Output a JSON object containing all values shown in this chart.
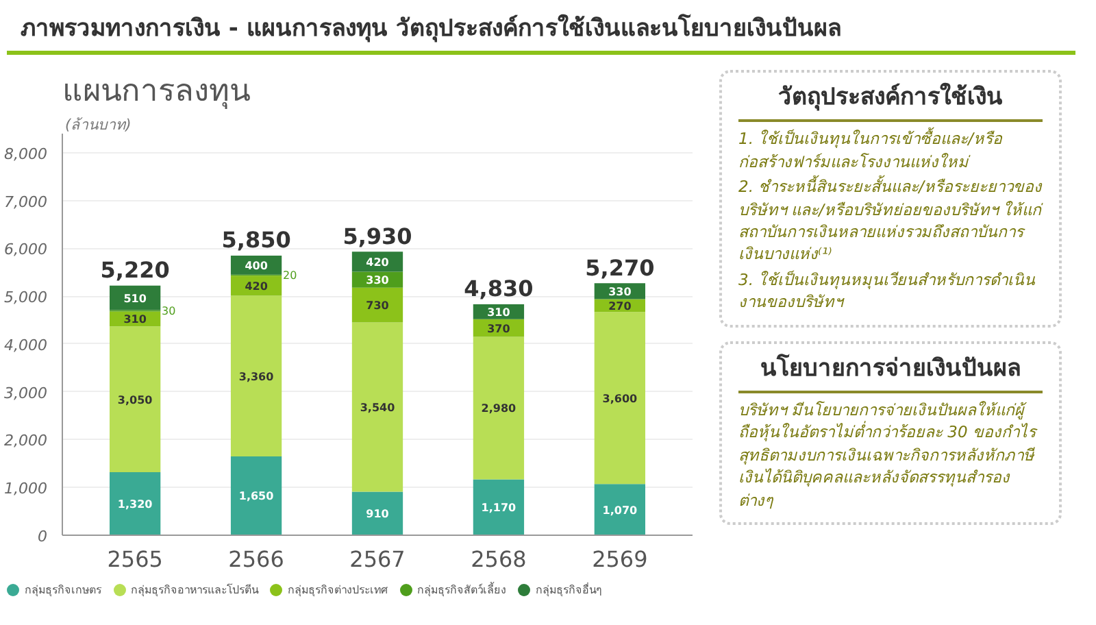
{
  "chart_data": [
    {
      "type": "bar",
      "title": "ภาพรวมทางการเงิน - แผนการลงทุน วัตถุประสงค์การใช้เงินและนโยบายเงินปันผล",
      "subtitle": "แผนการลงทุน",
      "ylabel": "(ล้านบาท)",
      "categories": [
        "2565",
        "2566",
        "2567",
        "2568",
        "2569"
      ],
      "stacked": true,
      "grid": "y",
      "legend": "bottom",
      "ylim": [
        0,
        8400
      ],
      "yticks": [
        {
          "value": 0,
          "label": "0"
        },
        {
          "value": 1000,
          "label": "1,000"
        },
        {
          "value": 2000,
          "label": "2,000"
        },
        {
          "value": 3000,
          "label": "3,000"
        },
        {
          "value": 4000,
          "label": "4,000"
        },
        {
          "value": 5000,
          "label": "5,000"
        },
        {
          "value": 6000,
          "label": "6,000"
        },
        {
          "value": 7000,
          "label": "7,000"
        },
        {
          "value": 8000,
          "label": "8,000"
        }
      ],
      "totals": [
        "5,220",
        "5,850",
        "5,930",
        "4,830",
        "5,270"
      ],
      "series": [
        {
          "name": "กลุ่มธุรกิจเกษตร",
          "color": "#3aaa94",
          "values": [
            1320,
            1650,
            910,
            1170,
            1070
          ],
          "value_labels": [
            "1,320",
            "1,650",
            "910",
            "1,170",
            "1,070"
          ]
        },
        {
          "name": "กลุ่มธุรกิจอาหารและโปรตีน",
          "color": "#b8de55",
          "values": [
            3050,
            3360,
            3540,
            2980,
            3600
          ],
          "value_labels": [
            "3,050",
            "3,360",
            "3,540",
            "2,980",
            "3,600"
          ]
        },
        {
          "name": "กลุ่มธุรกิจต่างประเทศ",
          "color": "#8cc21a",
          "values": [
            310,
            420,
            730,
            370,
            270
          ],
          "value_labels": [
            "310",
            "420",
            "730",
            "370",
            "270"
          ]
        },
        {
          "name": "กลุ่มธุรกิจสัตว์เลี้ยง",
          "color": "#4f9e1c",
          "values": [
            30,
            20,
            330,
            null,
            null
          ],
          "value_labels": [
            "30",
            "20",
            "330",
            null,
            null
          ]
        },
        {
          "name": "กลุ่มธุรกิจอื่นๆ",
          "color": "#2e7d3a",
          "values": [
            510,
            400,
            420,
            310,
            330
          ],
          "value_labels": [
            "510",
            "400",
            "420",
            "310",
            "330"
          ]
        }
      ]
    },
    {
      "type": "other",
      "title": "วัตถุประสงค์การใช้เงิน",
      "annotations": [
        "1. ใช้เป็นเงินทุนในการเข้าซื้อและ/หรือก่อสร้างฟาร์มและโรงงานแห่งใหม่",
        "2. ชำระหนี้สินระยะสั้นและ/หรือระยะยาวของ บริษัทฯ และ/หรือบริษัทย่อยของบริษัทฯ ให้แก่สถาบันการเงินหลายแห่งรวมถึงสถาบันการเงินบางแห่ง⁽¹⁾",
        "3. ใช้เป็นเงินทุนหมุนเวียนสำหรับการดำเนินงานของบริษัทฯ"
      ]
    },
    {
      "type": "other",
      "title": "นโยบายการจ่ายเงินปันผล",
      "annotations": [
        "บริษัทฯ มีนโยบายการจ่ายเงินปันผลให้แก่ผู้ถือหุ้นในอัตราไม่ต่ำกว่าร้อยละ 30 ของกำไรสุทธิตามงบการเงินเฉพาะกิจการหลังหักภาษีเงินได้นิติบุคคลและหลังจัดสรรทุนสำรองต่างๆ"
      ]
    }
  ]
}
